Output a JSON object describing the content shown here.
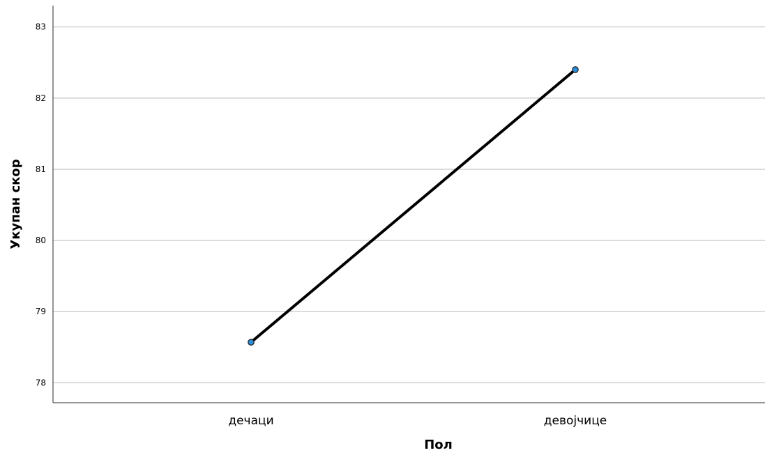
{
  "chart_data": {
    "type": "line",
    "xlabel": "Пол",
    "ylabel": "Укупан скор",
    "categories": [
      "дечаци",
      "девојчице"
    ],
    "series": [
      {
        "values": [
          78.57,
          82.4
        ],
        "color": "#2b8fd8"
      }
    ],
    "ylim": [
      77.72,
      83.3
    ],
    "yticks": [
      78,
      79,
      80,
      81,
      82,
      83
    ],
    "grid": true,
    "legend": "none",
    "line_color": "#000000"
  }
}
